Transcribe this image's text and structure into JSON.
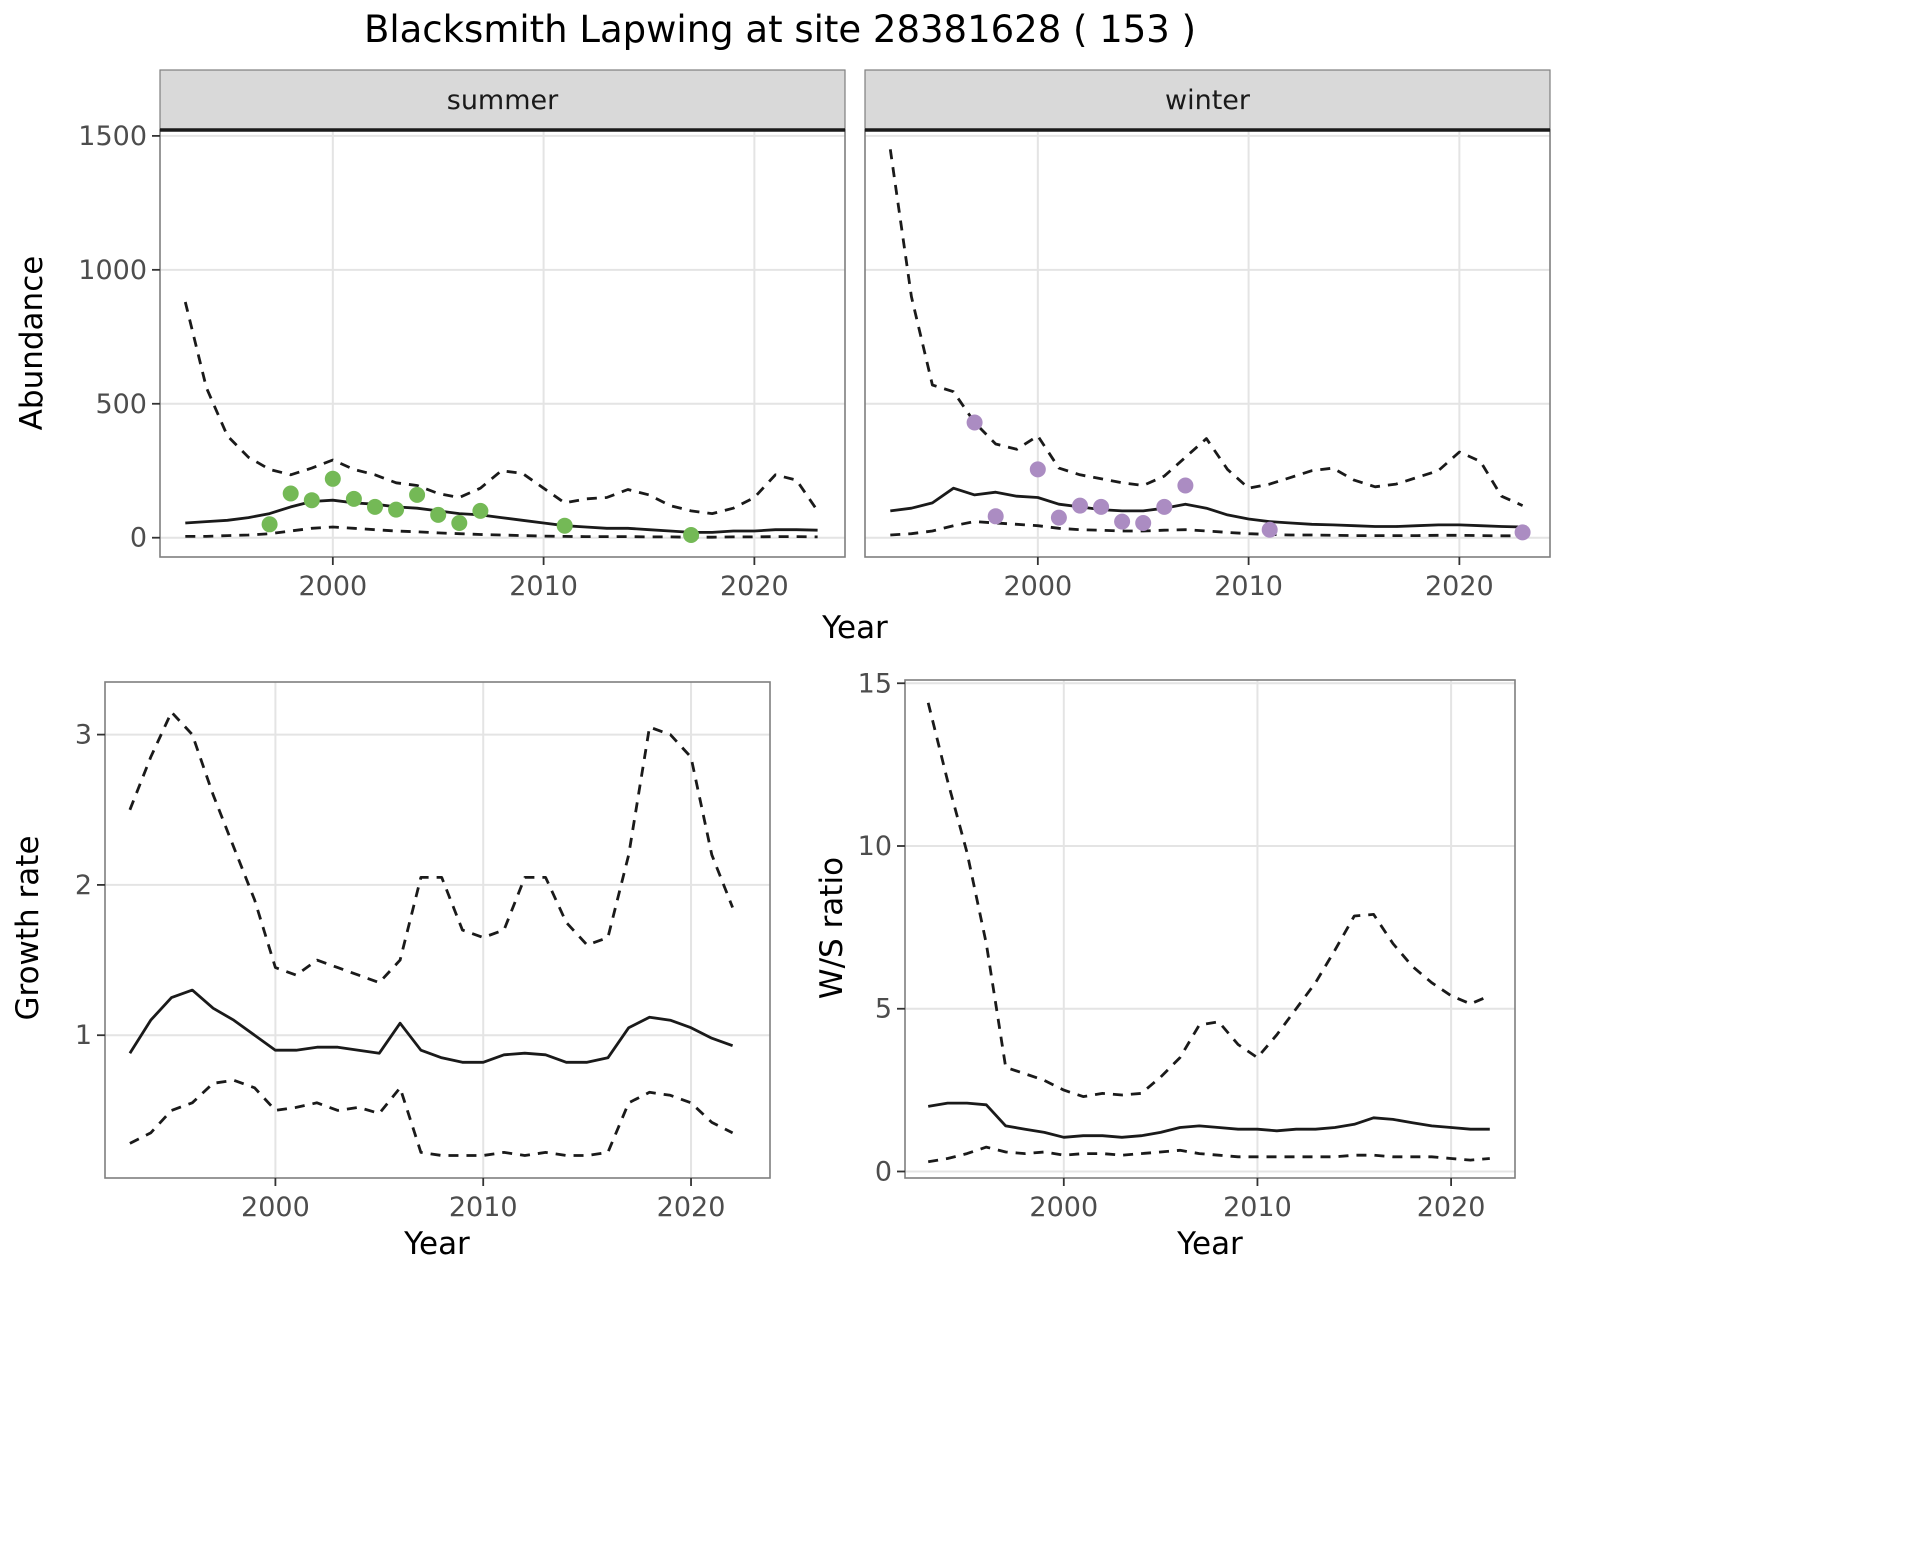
{
  "title": "Blacksmith Lapwing at site 28381628 ( 153 )",
  "axis_labels": {
    "abundance": "Abundance",
    "year": "Year",
    "growth": "Growth rate",
    "ws": "W/S ratio"
  },
  "colors": {
    "summer_point": "#74b956",
    "winter_point": "#ab8cc2",
    "line": "#1a1a1a",
    "strip_background": "#d9d9d9",
    "strip_border": "#1a1a1a",
    "grid": "#e4e4e4",
    "panel_border": "#7f7f7f",
    "tick_label": "#4d4d4d",
    "background": "#ffffff"
  },
  "chart_data": [
    {
      "type": "line",
      "name": "abundance-summer",
      "facet": "summer",
      "xlim": [
        1991.8,
        2024.3
      ],
      "ylim": [
        -72,
        1522
      ],
      "x_ticks": [
        2000,
        2010,
        2020
      ],
      "y_ticks": [
        0,
        500,
        1000,
        1500
      ],
      "x": [
        1993,
        1994,
        1995,
        1996,
        1997,
        1998,
        1999,
        2000,
        2001,
        2002,
        2003,
        2004,
        2005,
        2006,
        2007,
        2008,
        2009,
        2010,
        2011,
        2012,
        2013,
        2014,
        2015,
        2016,
        2017,
        2018,
        2019,
        2020,
        2021,
        2022,
        2023
      ],
      "series": [
        {
          "name": "upper-ci",
          "style": "dashed",
          "values": [
            880,
            560,
            380,
            300,
            255,
            235,
            260,
            290,
            255,
            235,
            205,
            195,
            165,
            150,
            185,
            250,
            240,
            185,
            130,
            145,
            150,
            180,
            160,
            120,
            100,
            90,
            110,
            150,
            235,
            215,
            100
          ]
        },
        {
          "name": "mean",
          "style": "solid",
          "values": [
            55,
            60,
            65,
            75,
            90,
            115,
            135,
            140,
            130,
            125,
            115,
            110,
            100,
            90,
            85,
            75,
            65,
            55,
            45,
            40,
            35,
            35,
            30,
            25,
            20,
            20,
            25,
            25,
            30,
            30,
            28
          ]
        },
        {
          "name": "lower-ci",
          "style": "dashed",
          "values": [
            5,
            5,
            8,
            10,
            15,
            25,
            35,
            40,
            35,
            30,
            25,
            22,
            18,
            15,
            12,
            10,
            8,
            6,
            5,
            4,
            4,
            4,
            3,
            3,
            2,
            2,
            3,
            3,
            4,
            4,
            3
          ]
        }
      ],
      "observations": {
        "color_key": "summer_point",
        "x": [
          1997,
          1998,
          1999,
          2000,
          2001,
          2002,
          2003,
          2004,
          2005,
          2006,
          2007,
          2011,
          2017
        ],
        "y": [
          50,
          165,
          140,
          220,
          145,
          115,
          105,
          160,
          85,
          55,
          100,
          45,
          10
        ]
      }
    },
    {
      "type": "line",
      "name": "abundance-winter",
      "facet": "winter",
      "xlim": [
        1991.8,
        2024.3
      ],
      "ylim": [
        -72,
        1522
      ],
      "x_ticks": [
        2000,
        2010,
        2020
      ],
      "y_ticks": [
        0,
        500,
        1000,
        1500
      ],
      "x": [
        1993,
        1994,
        1995,
        1996,
        1997,
        1998,
        1999,
        2000,
        2001,
        2002,
        2003,
        2004,
        2005,
        2006,
        2007,
        2008,
        2009,
        2010,
        2011,
        2012,
        2013,
        2014,
        2015,
        2016,
        2017,
        2018,
        2019,
        2020,
        2021,
        2022,
        2023
      ],
      "series": [
        {
          "name": "upper-ci",
          "style": "dashed",
          "values": [
            1450,
            900,
            570,
            545,
            430,
            350,
            330,
            380,
            260,
            235,
            220,
            205,
            195,
            230,
            300,
            370,
            255,
            185,
            200,
            225,
            250,
            260,
            215,
            190,
            200,
            225,
            250,
            320,
            285,
            155,
            120
          ]
        },
        {
          "name": "mean",
          "style": "solid",
          "values": [
            100,
            110,
            130,
            185,
            160,
            170,
            155,
            150,
            125,
            115,
            105,
            100,
            100,
            110,
            125,
            110,
            85,
            70,
            60,
            55,
            50,
            48,
            45,
            42,
            42,
            45,
            48,
            48,
            45,
            42,
            40
          ]
        },
        {
          "name": "lower-ci",
          "style": "dashed",
          "values": [
            10,
            15,
            25,
            45,
            60,
            55,
            50,
            45,
            35,
            30,
            28,
            25,
            25,
            28,
            30,
            25,
            20,
            15,
            12,
            10,
            10,
            9,
            8,
            8,
            8,
            8,
            9,
            9,
            8,
            7,
            7
          ]
        }
      ],
      "observations": {
        "color_key": "winter_point",
        "x": [
          1997,
          1998,
          2000,
          2001,
          2002,
          2003,
          2004,
          2005,
          2006,
          2007,
          2011,
          2023
        ],
        "y": [
          430,
          80,
          255,
          75,
          120,
          115,
          60,
          55,
          115,
          195,
          30,
          20
        ]
      }
    },
    {
      "type": "line",
      "name": "growth-rate",
      "facet": null,
      "xlim": [
        1991.8,
        2023.8
      ],
      "ylim": [
        0.05,
        3.35
      ],
      "x_ticks": [
        2000,
        2010,
        2020
      ],
      "y_ticks": [
        1,
        2,
        3
      ],
      "x": [
        1993,
        1994,
        1995,
        1996,
        1997,
        1998,
        1999,
        2000,
        2001,
        2002,
        2003,
        2004,
        2005,
        2006,
        2007,
        2008,
        2009,
        2010,
        2011,
        2012,
        2013,
        2014,
        2015,
        2016,
        2017,
        2018,
        2019,
        2020,
        2021,
        2022
      ],
      "series": [
        {
          "name": "upper-ci",
          "style": "dashed",
          "values": [
            2.5,
            2.85,
            3.15,
            3.0,
            2.6,
            2.25,
            1.9,
            1.45,
            1.4,
            1.5,
            1.45,
            1.4,
            1.35,
            1.5,
            2.05,
            2.05,
            1.7,
            1.65,
            1.7,
            2.05,
            2.05,
            1.75,
            1.6,
            1.65,
            2.2,
            3.05,
            3.0,
            2.85,
            2.2,
            1.85
          ]
        },
        {
          "name": "mean",
          "style": "solid",
          "values": [
            0.88,
            1.1,
            1.25,
            1.3,
            1.18,
            1.1,
            1.0,
            0.9,
            0.9,
            0.92,
            0.92,
            0.9,
            0.88,
            1.08,
            0.9,
            0.85,
            0.82,
            0.82,
            0.87,
            0.88,
            0.87,
            0.82,
            0.82,
            0.85,
            1.05,
            1.12,
            1.1,
            1.05,
            0.98,
            0.93
          ]
        },
        {
          "name": "lower-ci",
          "style": "dashed",
          "values": [
            0.28,
            0.35,
            0.5,
            0.55,
            0.68,
            0.7,
            0.65,
            0.5,
            0.52,
            0.55,
            0.5,
            0.52,
            0.48,
            0.65,
            0.22,
            0.2,
            0.2,
            0.2,
            0.22,
            0.2,
            0.22,
            0.2,
            0.2,
            0.22,
            0.55,
            0.62,
            0.6,
            0.55,
            0.42,
            0.35
          ]
        }
      ],
      "observations": null
    },
    {
      "type": "line",
      "name": "ws-ratio",
      "facet": null,
      "xlim": [
        1991.8,
        2023.3
      ],
      "ylim": [
        -0.2,
        15.1
      ],
      "x_ticks": [
        2000,
        2010,
        2020
      ],
      "y_ticks": [
        0,
        5,
        10,
        15
      ],
      "x": [
        1993,
        1994,
        1995,
        1996,
        1997,
        1998,
        1999,
        2000,
        2001,
        2002,
        2003,
        2004,
        2005,
        2006,
        2007,
        2008,
        2009,
        2010,
        2011,
        2012,
        2013,
        2014,
        2015,
        2016,
        2017,
        2018,
        2019,
        2020,
        2021,
        2022
      ],
      "series": [
        {
          "name": "upper-ci",
          "style": "dashed",
          "values": [
            14.4,
            12.0,
            9.8,
            7.0,
            3.2,
            3.0,
            2.8,
            2.5,
            2.3,
            2.4,
            2.35,
            2.4,
            2.9,
            3.5,
            4.5,
            4.6,
            3.9,
            3.5,
            4.2,
            5.0,
            5.8,
            6.8,
            7.85,
            7.9,
            7.0,
            6.3,
            5.8,
            5.4,
            5.15,
            5.4
          ]
        },
        {
          "name": "mean",
          "style": "solid",
          "values": [
            2.0,
            2.1,
            2.1,
            2.05,
            1.4,
            1.3,
            1.2,
            1.05,
            1.1,
            1.1,
            1.05,
            1.1,
            1.2,
            1.35,
            1.4,
            1.35,
            1.3,
            1.3,
            1.25,
            1.3,
            1.3,
            1.35,
            1.45,
            1.65,
            1.6,
            1.5,
            1.4,
            1.35,
            1.3,
            1.3
          ]
        },
        {
          "name": "lower-ci",
          "style": "dashed",
          "values": [
            0.3,
            0.4,
            0.55,
            0.75,
            0.6,
            0.55,
            0.6,
            0.5,
            0.55,
            0.55,
            0.5,
            0.55,
            0.6,
            0.65,
            0.55,
            0.5,
            0.45,
            0.45,
            0.45,
            0.45,
            0.45,
            0.45,
            0.5,
            0.5,
            0.45,
            0.45,
            0.45,
            0.4,
            0.35,
            0.4
          ]
        }
      ],
      "observations": null
    }
  ]
}
